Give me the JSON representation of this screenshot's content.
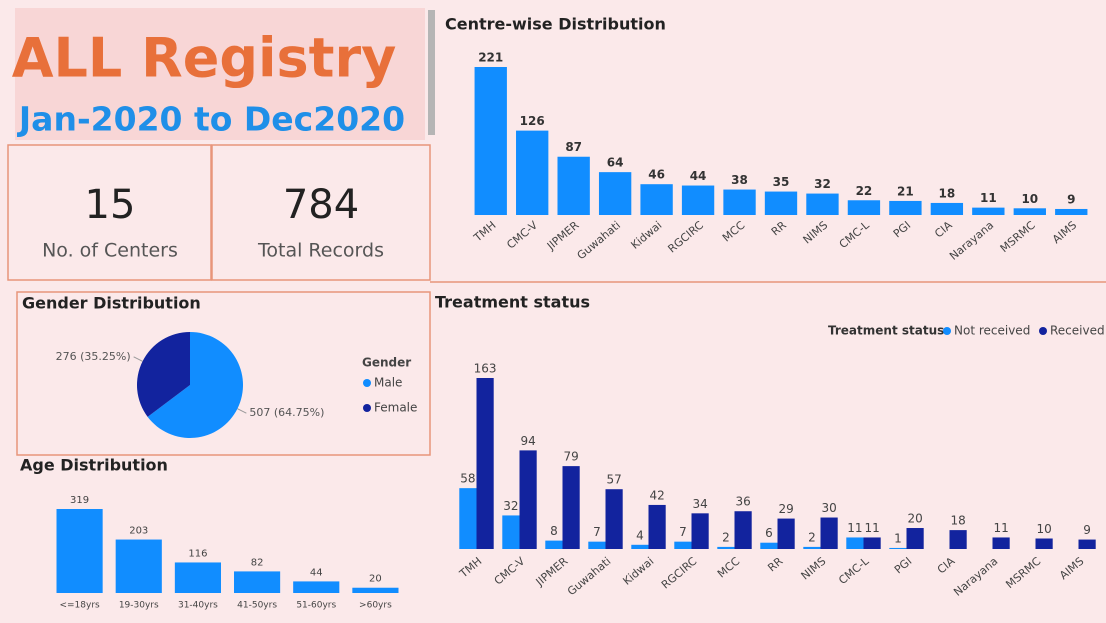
{
  "header": {
    "title": "ALL Registry",
    "subtitle": "Jan-2020 to Dec2020"
  },
  "kpis": [
    {
      "value": 15,
      "label": "No. of Centers"
    },
    {
      "value": 784,
      "label": "Total Records"
    }
  ],
  "chart_data": [
    {
      "type": "bar",
      "title": "Centre-wise Distribution",
      "categories": [
        "TMH",
        "CMC-V",
        "JIPMER",
        "Guwahati",
        "Kidwai",
        "RGCIRC",
        "MCC",
        "RR",
        "NIMS",
        "CMC-L",
        "PGI",
        "CIA",
        "Narayana",
        "MSRMC",
        "AIMS"
      ],
      "values": [
        221,
        126,
        87,
        64,
        46,
        44,
        38,
        35,
        32,
        22,
        21,
        18,
        11,
        10,
        9
      ],
      "color": "#118dff"
    },
    {
      "type": "pie",
      "title": "Gender Distribution",
      "legend_title": "Gender",
      "categories": [
        "Male",
        "Female"
      ],
      "values": [
        507,
        276
      ],
      "value_labels": [
        "507 (64.75%)",
        "276 (35.25%)"
      ],
      "colors": [
        "#118dff",
        "#12239e"
      ]
    },
    {
      "type": "bar",
      "title": "Age Distribution",
      "categories": [
        "<=18yrs",
        "19-30yrs",
        "31-40yrs",
        "41-50yrs",
        "51-60yrs",
        ">60yrs"
      ],
      "values": [
        319,
        203,
        116,
        82,
        44,
        20
      ],
      "color": "#118dff"
    },
    {
      "type": "bar",
      "title": "Treatment status",
      "legend_title": "Treatment status",
      "categories": [
        "TMH",
        "CMC-V",
        "JIPMER",
        "Guwahati",
        "Kidwai",
        "RGCIRC",
        "MCC",
        "RR",
        "NIMS",
        "CMC-L",
        "PGI",
        "CIA",
        "Narayana",
        "MSRMC",
        "AIMS"
      ],
      "series": [
        {
          "name": "Not received",
          "color": "#118dff",
          "values": [
            58,
            32,
            8,
            7,
            4,
            7,
            2,
            6,
            2,
            11,
            1,
            null,
            null,
            null,
            null
          ]
        },
        {
          "name": "Received",
          "color": "#12239e",
          "values": [
            163,
            94,
            79,
            57,
            42,
            34,
            36,
            29,
            30,
            11,
            20,
            18,
            11,
            10,
            9
          ]
        }
      ]
    }
  ]
}
